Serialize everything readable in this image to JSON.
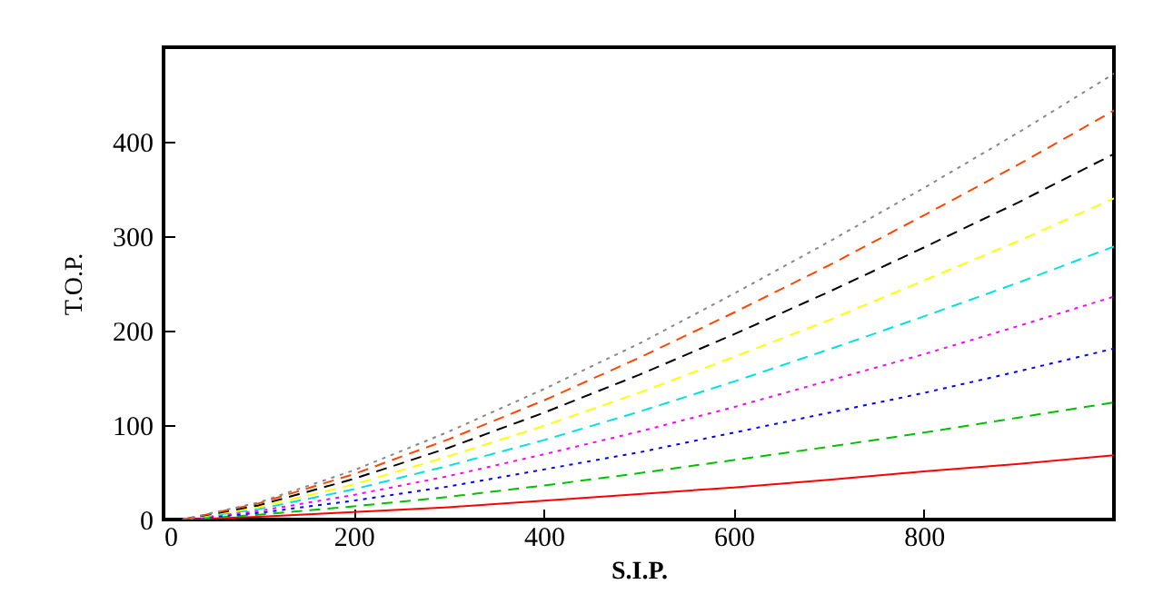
{
  "chart_data": {
    "type": "line",
    "xlabel": "S.I.P.",
    "ylabel": "T.O.P.",
    "x": [
      20,
      100,
      200,
      300,
      400,
      500,
      600,
      700,
      800,
      900,
      1000
    ],
    "xlim": [
      0,
      1000
    ],
    "xticks": [
      0,
      200,
      400,
      600,
      800
    ],
    "ylim": [
      0,
      500
    ],
    "yticks": [
      0,
      100,
      200,
      300,
      400
    ],
    "grid": false,
    "marker": "none",
    "series": [
      {
        "color": "#ff0000",
        "line_style": "solid",
        "values": [
          0,
          3,
          8,
          13,
          20,
          27,
          34,
          42,
          51,
          59,
          68
        ]
      },
      {
        "color": "#00c000",
        "line_style": "dashed",
        "values": [
          0,
          5,
          14,
          24,
          36,
          49,
          63,
          77,
          92,
          108,
          124
        ]
      },
      {
        "color": "#0000ff",
        "line_style": "dotted",
        "values": [
          0,
          7,
          20,
          35,
          53,
          71,
          92,
          113,
          134,
          157,
          181
        ]
      },
      {
        "color": "#ff00ff",
        "line_style": "dotted",
        "values": [
          0,
          9,
          26,
          46,
          69,
          93,
          119,
          147,
          175,
          205,
          236
        ]
      },
      {
        "color": "#00e0e0",
        "line_style": "dashed",
        "values": [
          0,
          11,
          32,
          57,
          84,
          114,
          146,
          180,
          215,
          251,
          289
        ]
      },
      {
        "color": "#ffff00",
        "line_style": "dashed",
        "values": [
          0,
          13,
          37,
          67,
          99,
          134,
          172,
          211,
          253,
          295,
          340
        ]
      },
      {
        "color": "#000000",
        "line_style": "dashed",
        "values": [
          0,
          15,
          43,
          76,
          113,
          153,
          196,
          241,
          288,
          336,
          387
        ]
      },
      {
        "color": "#ff4500",
        "line_style": "dashed",
        "values": [
          0,
          17,
          48,
          85,
          126,
          171,
          219,
          269,
          322,
          376,
          433
        ]
      },
      {
        "color": "#888888",
        "line_style": "dotted",
        "values": [
          0,
          18,
          52,
          93,
          138,
          186,
          239,
          294,
          351,
          410,
          472
        ]
      }
    ]
  }
}
